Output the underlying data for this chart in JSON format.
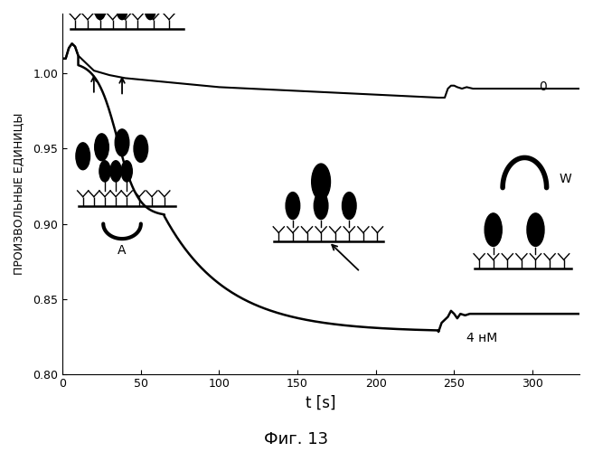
{
  "title": "Фиг. 13",
  "ylabel": "ПРОИЗВОЛЬНЫЕ ЕДИНИЦЫ",
  "xlabel": "t [s]",
  "xlim": [
    0,
    330
  ],
  "ylim": [
    0.8,
    1.04
  ],
  "yticks": [
    0.8,
    0.85,
    0.9,
    0.95,
    1.0
  ],
  "xticks": [
    0,
    50,
    100,
    150,
    200,
    250,
    300
  ],
  "curve0_label": "0",
  "curve4nm_label": "4 нМ",
  "label_W": "W",
  "label_A": "A",
  "bg_color": "#ffffff",
  "line_color": "#000000"
}
